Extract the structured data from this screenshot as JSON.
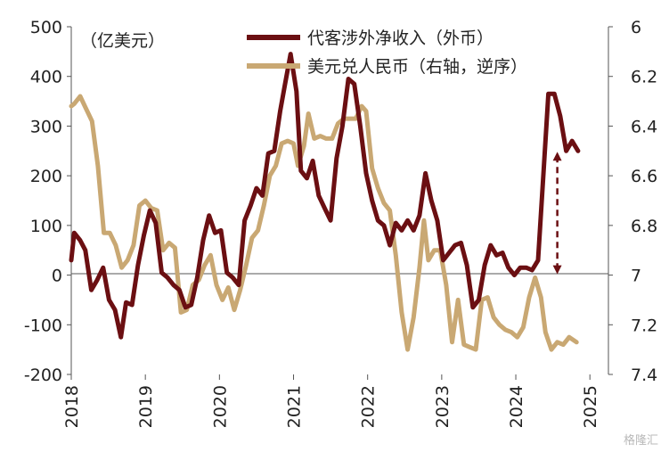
{
  "chart_data": {
    "type": "line",
    "unit_label": "（亿美元）",
    "x_tick_labels": [
      "2018",
      "2019",
      "2020",
      "2021",
      "2022",
      "2023",
      "2024",
      "2025"
    ],
    "left_axis": {
      "ylim": [
        -200,
        500
      ],
      "ticks": [
        "500",
        "400",
        "300",
        "200",
        "100",
        "0",
        "-100",
        "-200"
      ]
    },
    "right_axis": {
      "ylim": [
        6,
        7.4
      ],
      "inverted": true,
      "ticks": [
        "6",
        "6.2",
        "6.4",
        "6.6",
        "6.8",
        "7",
        "7.2",
        "7.4"
      ]
    },
    "x_range": [
      2018.0,
      2025.25
    ],
    "series": [
      {
        "name": "代客涉外净收入（外币）",
        "axis": "left",
        "color": "#6b0f12",
        "points": [
          [
            2018.0,
            30
          ],
          [
            2018.04,
            85
          ],
          [
            2018.12,
            70
          ],
          [
            2018.19,
            50
          ],
          [
            2018.27,
            -30
          ],
          [
            2018.35,
            -10
          ],
          [
            2018.43,
            15
          ],
          [
            2018.51,
            -50
          ],
          [
            2018.59,
            -70
          ],
          [
            2018.67,
            -125
          ],
          [
            2018.74,
            -55
          ],
          [
            2018.82,
            -60
          ],
          [
            2018.9,
            20
          ],
          [
            2018.98,
            80
          ],
          [
            2019.06,
            130
          ],
          [
            2019.14,
            105
          ],
          [
            2019.22,
            5
          ],
          [
            2019.3,
            -5
          ],
          [
            2019.38,
            -20
          ],
          [
            2019.46,
            -30
          ],
          [
            2019.54,
            -65
          ],
          [
            2019.62,
            -60
          ],
          [
            2019.7,
            -5
          ],
          [
            2019.78,
            70
          ],
          [
            2019.86,
            120
          ],
          [
            2019.94,
            85
          ],
          [
            2020.02,
            90
          ],
          [
            2020.1,
            5
          ],
          [
            2020.18,
            -5
          ],
          [
            2020.26,
            -20
          ],
          [
            2020.34,
            110
          ],
          [
            2020.42,
            140
          ],
          [
            2020.5,
            175
          ],
          [
            2020.58,
            160
          ],
          [
            2020.66,
            245
          ],
          [
            2020.74,
            250
          ],
          [
            2020.82,
            330
          ],
          [
            2020.88,
            380
          ],
          [
            2020.96,
            445
          ],
          [
            2021.04,
            370
          ],
          [
            2021.1,
            210
          ],
          [
            2021.18,
            195
          ],
          [
            2021.26,
            230
          ],
          [
            2021.34,
            160
          ],
          [
            2021.42,
            135
          ],
          [
            2021.5,
            110
          ],
          [
            2021.58,
            235
          ],
          [
            2021.66,
            300
          ],
          [
            2021.74,
            395
          ],
          [
            2021.82,
            385
          ],
          [
            2021.9,
            300
          ],
          [
            2021.98,
            205
          ],
          [
            2022.06,
            150
          ],
          [
            2022.14,
            110
          ],
          [
            2022.22,
            100
          ],
          [
            2022.3,
            60
          ],
          [
            2022.38,
            105
          ],
          [
            2022.46,
            90
          ],
          [
            2022.54,
            110
          ],
          [
            2022.62,
            90
          ],
          [
            2022.7,
            120
          ],
          [
            2022.78,
            205
          ],
          [
            2022.86,
            150
          ],
          [
            2022.94,
            110
          ],
          [
            2023.02,
            30
          ],
          [
            2023.1,
            45
          ],
          [
            2023.18,
            60
          ],
          [
            2023.26,
            65
          ],
          [
            2023.34,
            20
          ],
          [
            2023.42,
            -65
          ],
          [
            2023.5,
            -50
          ],
          [
            2023.58,
            20
          ],
          [
            2023.66,
            60
          ],
          [
            2023.74,
            40
          ],
          [
            2023.82,
            45
          ],
          [
            2023.9,
            15
          ],
          [
            2023.98,
            0
          ],
          [
            2024.06,
            15
          ],
          [
            2024.14,
            15
          ],
          [
            2024.22,
            10
          ],
          [
            2024.3,
            30
          ],
          [
            2024.38,
            220
          ],
          [
            2024.44,
            365
          ],
          [
            2024.52,
            365
          ],
          [
            2024.6,
            320
          ],
          [
            2024.68,
            250
          ],
          [
            2024.76,
            270
          ],
          [
            2024.84,
            250
          ]
        ]
      },
      {
        "name": "美元兑人民币（右轴，逆序）",
        "axis": "right",
        "color": "#c9a873",
        "points": [
          [
            2018.0,
            6.32
          ],
          [
            2018.04,
            6.31
          ],
          [
            2018.12,
            6.28
          ],
          [
            2018.2,
            6.33
          ],
          [
            2018.28,
            6.38
          ],
          [
            2018.36,
            6.56
          ],
          [
            2018.44,
            6.83
          ],
          [
            2018.52,
            6.83
          ],
          [
            2018.6,
            6.88
          ],
          [
            2018.68,
            6.97
          ],
          [
            2018.76,
            6.94
          ],
          [
            2018.84,
            6.88
          ],
          [
            2018.92,
            6.72
          ],
          [
            2019.0,
            6.7
          ],
          [
            2019.08,
            6.73
          ],
          [
            2019.16,
            6.74
          ],
          [
            2019.24,
            6.9
          ],
          [
            2019.32,
            6.87
          ],
          [
            2019.4,
            6.89
          ],
          [
            2019.48,
            7.15
          ],
          [
            2019.56,
            7.14
          ],
          [
            2019.64,
            7.04
          ],
          [
            2019.72,
            7.02
          ],
          [
            2019.8,
            6.96
          ],
          [
            2019.88,
            6.92
          ],
          [
            2019.96,
            7.04
          ],
          [
            2020.04,
            7.1
          ],
          [
            2020.12,
            7.05
          ],
          [
            2020.2,
            7.14
          ],
          [
            2020.28,
            7.06
          ],
          [
            2020.36,
            6.96
          ],
          [
            2020.44,
            6.85
          ],
          [
            2020.52,
            6.82
          ],
          [
            2020.6,
            6.72
          ],
          [
            2020.68,
            6.6
          ],
          [
            2020.76,
            6.56
          ],
          [
            2020.84,
            6.47
          ],
          [
            2020.92,
            6.46
          ],
          [
            2021.0,
            6.47
          ],
          [
            2021.06,
            6.56
          ],
          [
            2021.14,
            6.48
          ],
          [
            2021.2,
            6.35
          ],
          [
            2021.28,
            6.45
          ],
          [
            2021.36,
            6.44
          ],
          [
            2021.44,
            6.45
          ],
          [
            2021.52,
            6.45
          ],
          [
            2021.6,
            6.39
          ],
          [
            2021.68,
            6.37
          ],
          [
            2021.76,
            6.37
          ],
          [
            2021.84,
            6.37
          ],
          [
            2021.92,
            6.32
          ],
          [
            2021.98,
            6.34
          ],
          [
            2022.06,
            6.57
          ],
          [
            2022.14,
            6.65
          ],
          [
            2022.22,
            6.71
          ],
          [
            2022.3,
            6.74
          ],
          [
            2022.38,
            6.92
          ],
          [
            2022.46,
            7.15
          ],
          [
            2022.54,
            7.3
          ],
          [
            2022.62,
            7.17
          ],
          [
            2022.7,
            6.97
          ],
          [
            2022.76,
            6.78
          ],
          [
            2022.82,
            6.94
          ],
          [
            2022.9,
            6.9
          ],
          [
            2022.98,
            6.9
          ],
          [
            2023.06,
            7.04
          ],
          [
            2023.14,
            7.27
          ],
          [
            2023.22,
            7.1
          ],
          [
            2023.3,
            7.28
          ],
          [
            2023.38,
            7.29
          ],
          [
            2023.46,
            7.3
          ],
          [
            2023.54,
            7.1
          ],
          [
            2023.62,
            7.09
          ],
          [
            2023.7,
            7.17
          ],
          [
            2023.78,
            7.2
          ],
          [
            2023.86,
            7.22
          ],
          [
            2023.94,
            7.23
          ],
          [
            2024.02,
            7.25
          ],
          [
            2024.1,
            7.21
          ],
          [
            2024.18,
            7.09
          ],
          [
            2024.26,
            7.01
          ],
          [
            2024.34,
            7.09
          ],
          [
            2024.4,
            7.23
          ],
          [
            2024.48,
            7.3
          ],
          [
            2024.56,
            7.27
          ],
          [
            2024.64,
            7.28
          ],
          [
            2024.72,
            7.25
          ],
          [
            2024.82,
            7.27
          ]
        ]
      }
    ],
    "annotation": {
      "type": "double-arrow",
      "style": "dashed",
      "color": "#6b0f12",
      "x": 2024.56,
      "from_left_value": 250,
      "to_left_value": 0
    },
    "watermark": "格隆汇"
  }
}
